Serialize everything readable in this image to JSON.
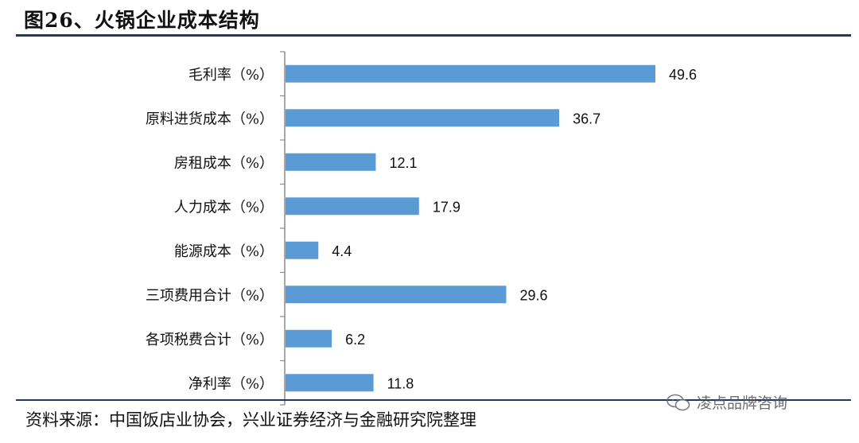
{
  "header": {
    "title": "图26、火锅企业成本结构"
  },
  "footer": {
    "source": "资料来源：中国饭店业协会，兴业证券经济与金融研究院整理"
  },
  "watermark": {
    "text": "凌点品牌咨询",
    "icon": "chat-bubble-icon"
  },
  "colors": {
    "bar": "#5b9bd5",
    "rule": "#1f3864",
    "axis": "#8c8c8c"
  },
  "chart_data": {
    "type": "bar",
    "orientation": "horizontal",
    "categories": [
      "毛利率（%）",
      "原料进货成本（%）",
      "房租成本（%）",
      "人力成本（%）",
      "能源成本（%）",
      "三项费用合计（%）",
      "各项税费合计（%）",
      "净利率（%）"
    ],
    "values": [
      49.6,
      36.7,
      12.1,
      17.9,
      4.4,
      29.6,
      6.2,
      11.8
    ],
    "value_labels": [
      "49.6",
      "36.7",
      "12.1",
      "17.9",
      "4.4",
      "29.6",
      "6.2",
      "11.8"
    ],
    "xlim": [
      0,
      55
    ],
    "grid": false,
    "legend": "none"
  }
}
